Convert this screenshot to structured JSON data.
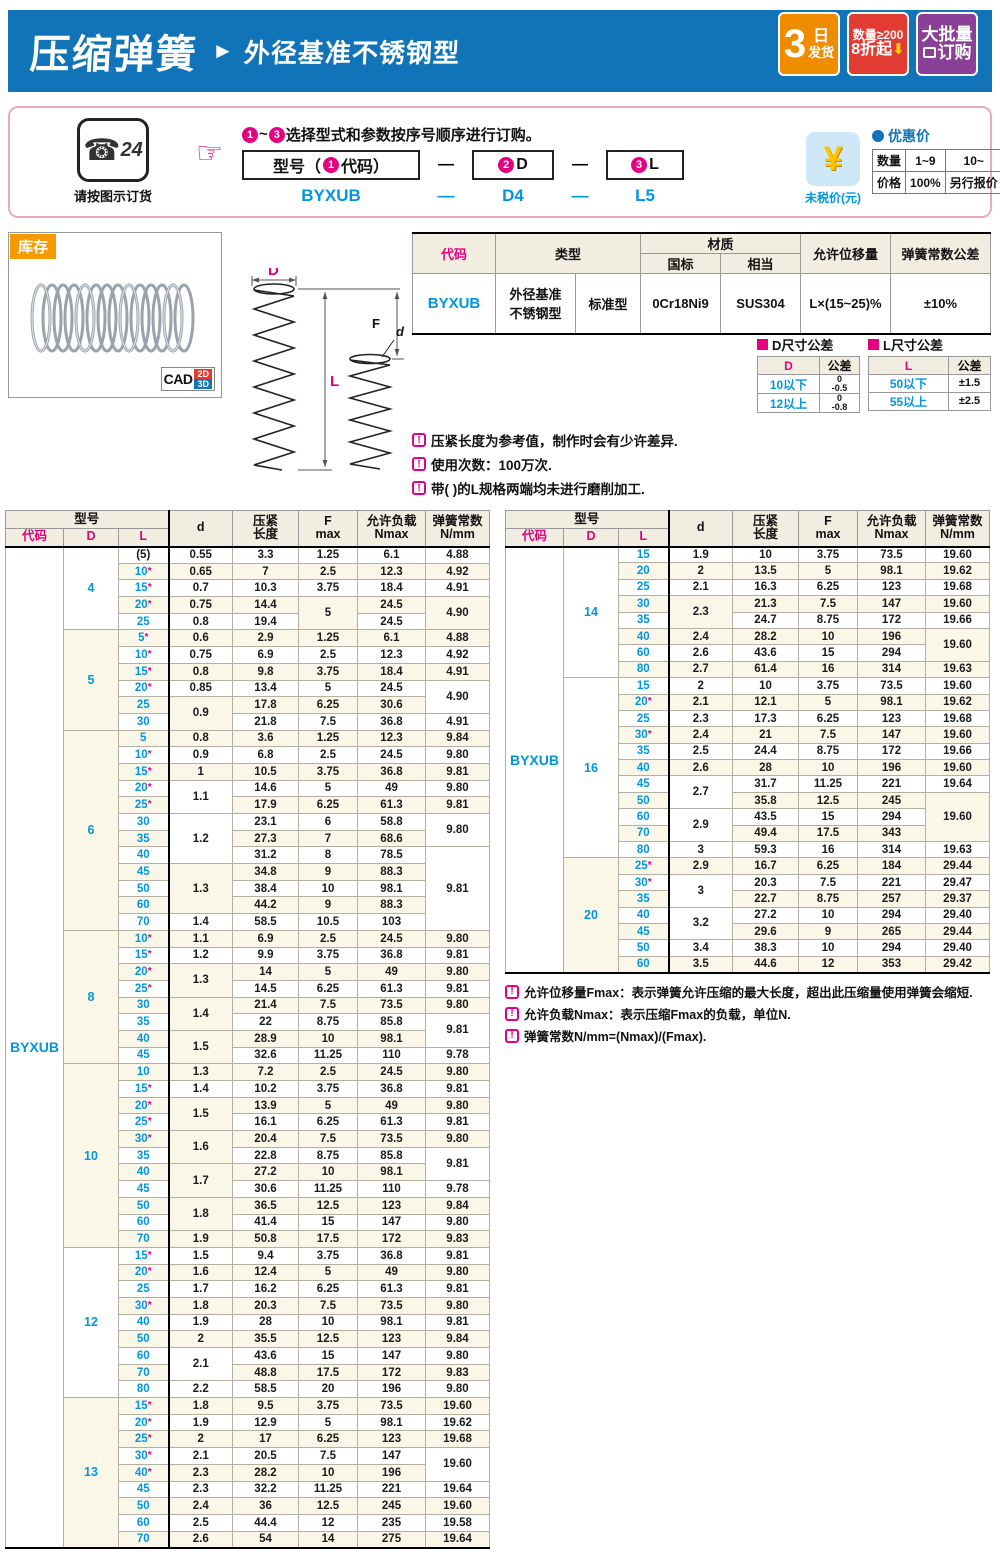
{
  "banner": {
    "title": "压缩弹簧",
    "arrow": "►",
    "subtitle": "外径基准不锈钢型"
  },
  "badges": {
    "b1_num": "3",
    "b1_unit": "日",
    "b1_text": "发货",
    "b2_line1": "数量≥200",
    "b2_line2": "8折起",
    "b2_arrow": "⬇",
    "b3_line1": "大批量",
    "b3_line2": "订购"
  },
  "ordering": {
    "phone_glyph": "☎",
    "phone_24": "24",
    "phone_caption": "请按图示订货",
    "hand": "☞",
    "instr_n1": "1",
    "instr_tilde": "~",
    "instr_n3": "3",
    "instr_text": "选择型式和参数按序号顺序进行订购。",
    "box1_pre": "型号（",
    "box1_n": "1",
    "box1_post": "代码）",
    "box2_n": "2",
    "box2_letter": "D",
    "box3_n": "3",
    "box3_letter": "L",
    "dash": "—",
    "example": {
      "code": "BYXUB",
      "dash1": "—",
      "d": "D4",
      "dash2": "—",
      "l": "L5"
    }
  },
  "pricing": {
    "yen": "¥",
    "caption": "未税价(元)",
    "title": "优惠价",
    "row1": [
      "数量",
      "1~9",
      "10~"
    ],
    "row2": [
      "价格",
      "100%",
      "另行报价"
    ]
  },
  "stock": {
    "tag": "库存",
    "cad": "CAD",
    "cad2d": "2D",
    "cad3d": "3D"
  },
  "diagram_labels": {
    "D": "D",
    "F": "F",
    "d": "d",
    "L": "L"
  },
  "spec_table": {
    "h_code": "代码",
    "h_type": "类型",
    "h_material": "材质",
    "h_gb": "国标",
    "h_equiv": "相当",
    "h_disp": "允许位移量",
    "h_ktol": "弹簧常数公差",
    "code": "BYXUB",
    "type1": "外径基准\n不锈钢型",
    "type2": "标准型",
    "gb": "0Cr18Ni9",
    "equiv": "SUS304",
    "disp": "L×(15~25)%",
    "ktol": "±10%"
  },
  "tolerances": {
    "d_title": "D尺寸公差",
    "d_h1": "D",
    "d_h2": "公差",
    "d_rows": [
      {
        "label": "10以下",
        "upper": "0",
        "lower": "-0.5"
      },
      {
        "label": "12以上",
        "upper": "0",
        "lower": "-0.8"
      }
    ],
    "l_title": "L尺寸公差",
    "l_h1": "L",
    "l_h2": "公差",
    "l_rows": [
      {
        "label": "50以下",
        "tol": "±1.5"
      },
      {
        "label": "55以上",
        "tol": "±2.5"
      }
    ]
  },
  "notes": [
    "压紧长度为参考值，制作时会有少许差异.",
    "使用次数：100万次.",
    "带( )的L规格两端均未进行磨削加工."
  ],
  "footnotes": [
    "允许位移量Fmax：表示弹簧允许压缩的最大长度，超出此压缩量使用弹簧会缩短.",
    "允许负载Nmax：表示压缩Fmax的负载，单位N.",
    "弹簧常数N/mm=(Nmax)/(Fmax)."
  ],
  "spring_tables": {
    "headers": {
      "model": "型号",
      "code": "代码",
      "D": "D",
      "L": "L",
      "d": "d",
      "len": "压紧\n长度",
      "f": "F\nmax",
      "n": "允许负载\nNmax",
      "k": "弹簧常数\nN/mm"
    },
    "left": {
      "code": "BYXUB",
      "groups": [
        {
          "D": "4",
          "rows": [
            {
              "L": "(5)",
              "d": "0.55",
              "len": "3.3",
              "f": "1.25",
              "n": "6.1",
              "k": "4.88"
            },
            {
              "L": "10*",
              "d": "0.65",
              "len": "7",
              "f": "2.5",
              "n": "12.3",
              "k": "4.92"
            },
            {
              "L": "15*",
              "d": "0.7",
              "len": "10.3",
              "f": "3.75",
              "n": "18.4",
              "k": "4.91"
            },
            {
              "L": "20*",
              "d": "0.75",
              "len": "14.4",
              "f": "5",
              "n": "24.5",
              "k": "4.90"
            },
            {
              "L": "25",
              "d": "0.8",
              "len": "19.4",
              "f": null,
              "n": "24.5",
              "k": null
            }
          ]
        },
        {
          "D": "5",
          "rows": [
            {
              "L": "5*",
              "d": "0.6",
              "len": "2.9",
              "f": "1.25",
              "n": "6.1",
              "k": "4.88"
            },
            {
              "L": "10*",
              "d": "0.75",
              "len": "6.9",
              "f": "2.5",
              "n": "12.3",
              "k": "4.92"
            },
            {
              "L": "15*",
              "d": "0.8",
              "len": "9.8",
              "f": "3.75",
              "n": "18.4",
              "k": "4.91"
            },
            {
              "L": "20*",
              "d": "0.85",
              "len": "13.4",
              "f": "5",
              "n": "24.5",
              "k": "4.90"
            },
            {
              "L": "25",
              "d": "0.9",
              "len": "17.8",
              "f": "6.25",
              "n": "30.6",
              "k": null
            },
            {
              "L": "30",
              "d": null,
              "len": "21.8",
              "f": "7.5",
              "n": "36.8",
              "k": "4.91"
            }
          ]
        },
        {
          "D": "6",
          "rows": [
            {
              "L": "5",
              "d": "0.8",
              "len": "3.6",
              "f": "1.25",
              "n": "12.3",
              "k": "9.84"
            },
            {
              "L": "10*",
              "d": "0.9",
              "len": "6.8",
              "f": "2.5",
              "n": "24.5",
              "k": "9.80"
            },
            {
              "L": "15*",
              "d": "1",
              "len": "10.5",
              "f": "3.75",
              "n": "36.8",
              "k": "9.81"
            },
            {
              "L": "20*",
              "d": "1.1",
              "len": "14.6",
              "f": "5",
              "n": "49",
              "k": "9.80"
            },
            {
              "L": "25*",
              "d": null,
              "len": "17.9",
              "f": "6.25",
              "n": "61.3",
              "k": "9.81"
            },
            {
              "L": "30",
              "d": "1.2",
              "len": "23.1",
              "f": "6",
              "n": "58.8",
              "k": "9.80"
            },
            {
              "L": "35",
              "d": null,
              "len": "27.3",
              "f": "7",
              "n": "68.6",
              "k": null
            },
            {
              "L": "40",
              "d": null,
              "len": "31.2",
              "f": "8",
              "n": "78.5",
              "k": "9.81"
            },
            {
              "L": "45",
              "d": "1.3",
              "len": "34.8",
              "f": "9",
              "n": "88.3",
              "k": null
            },
            {
              "L": "50",
              "d": null,
              "len": "38.4",
              "f": "10",
              "n": "98.1",
              "k": null
            },
            {
              "L": "60",
              "d": null,
              "len": "44.2",
              "f": "9",
              "n": "88.3",
              "k": null
            },
            {
              "L": "70",
              "d": "1.4",
              "len": "58.5",
              "f": "10.5",
              "n": "103",
              "k": null
            }
          ]
        },
        {
          "D": "8",
          "rows": [
            {
              "L": "10*",
              "d": "1.1",
              "len": "6.9",
              "f": "2.5",
              "n": "24.5",
              "k": "9.80"
            },
            {
              "L": "15*",
              "d": "1.2",
              "len": "9.9",
              "f": "3.75",
              "n": "36.8",
              "k": "9.81"
            },
            {
              "L": "20*",
              "d": "1.3",
              "len": "14",
              "f": "5",
              "n": "49",
              "k": "9.80"
            },
            {
              "L": "25*",
              "d": null,
              "len": "14.5",
              "f": "6.25",
              "n": "61.3",
              "k": "9.81"
            },
            {
              "L": "30",
              "d": "1.4",
              "len": "21.4",
              "f": "7.5",
              "n": "73.5",
              "k": "9.80"
            },
            {
              "L": "35",
              "d": null,
              "len": "22",
              "f": "8.75",
              "n": "85.8",
              "k": "9.81"
            },
            {
              "L": "40",
              "d": "1.5",
              "len": "28.9",
              "f": "10",
              "n": "98.1",
              "k": null
            },
            {
              "L": "45",
              "d": null,
              "len": "32.6",
              "f": "11.25",
              "n": "110",
              "k": "9.78"
            }
          ]
        },
        {
          "D": "10",
          "rows": [
            {
              "L": "10",
              "d": "1.3",
              "len": "7.2",
              "f": "2.5",
              "n": "24.5",
              "k": "9.80"
            },
            {
              "L": "15*",
              "d": "1.4",
              "len": "10.2",
              "f": "3.75",
              "n": "36.8",
              "k": "9.81"
            },
            {
              "L": "20*",
              "d": "1.5",
              "len": "13.9",
              "f": "5",
              "n": "49",
              "k": "9.80"
            },
            {
              "L": "25*",
              "d": null,
              "len": "16.1",
              "f": "6.25",
              "n": "61.3",
              "k": "9.81"
            },
            {
              "L": "30*",
              "d": "1.6",
              "len": "20.4",
              "f": "7.5",
              "n": "73.5",
              "k": "9.80"
            },
            {
              "L": "35",
              "d": null,
              "len": "22.8",
              "f": "8.75",
              "n": "85.8",
              "k": "9.81"
            },
            {
              "L": "40",
              "d": "1.7",
              "len": "27.2",
              "f": "10",
              "n": "98.1",
              "k": null
            },
            {
              "L": "45",
              "d": null,
              "len": "30.6",
              "f": "11.25",
              "n": "110",
              "k": "9.78"
            },
            {
              "L": "50",
              "d": "1.8",
              "len": "36.5",
              "f": "12.5",
              "n": "123",
              "k": "9.84"
            },
            {
              "L": "60",
              "d": null,
              "len": "41.4",
              "f": "15",
              "n": "147",
              "k": "9.80"
            },
            {
              "L": "70",
              "d": "1.9",
              "len": "50.8",
              "f": "17.5",
              "n": "172",
              "k": "9.83"
            }
          ]
        },
        {
          "D": "12",
          "rows": [
            {
              "L": "15*",
              "d": "1.5",
              "len": "9.4",
              "f": "3.75",
              "n": "36.8",
              "k": "9.81"
            },
            {
              "L": "20*",
              "d": "1.6",
              "len": "12.4",
              "f": "5",
              "n": "49",
              "k": "9.80"
            },
            {
              "L": "25",
              "d": "1.7",
              "len": "16.2",
              "f": "6.25",
              "n": "61.3",
              "k": "9.81"
            },
            {
              "L": "30*",
              "d": "1.8",
              "len": "20.3",
              "f": "7.5",
              "n": "73.5",
              "k": "9.80"
            },
            {
              "L": "40",
              "d": "1.9",
              "len": "28",
              "f": "10",
              "n": "98.1",
              "k": "9.81"
            },
            {
              "L": "50",
              "d": "2",
              "len": "35.5",
              "f": "12.5",
              "n": "123",
              "k": "9.84"
            },
            {
              "L": "60",
              "d": "2.1",
              "len": "43.6",
              "f": "15",
              "n": "147",
              "k": "9.80"
            },
            {
              "L": "70",
              "d": null,
              "len": "48.8",
              "f": "17.5",
              "n": "172",
              "k": "9.83"
            },
            {
              "L": "80",
              "d": "2.2",
              "len": "58.5",
              "f": "20",
              "n": "196",
              "k": "9.80"
            }
          ]
        },
        {
          "D": "13",
          "rows": [
            {
              "L": "15*",
              "d": "1.8",
              "len": "9.5",
              "f": "3.75",
              "n": "73.5",
              "k": "19.60"
            },
            {
              "L": "20*",
              "d": "1.9",
              "len": "12.9",
              "f": "5",
              "n": "98.1",
              "k": "19.62"
            },
            {
              "L": "25*",
              "d": "2",
              "len": "17",
              "f": "6.25",
              "n": "123",
              "k": "19.68"
            },
            {
              "L": "30*",
              "d": "2.1",
              "len": "20.5",
              "f": "7.5",
              "n": "147",
              "k": "19.60"
            },
            {
              "L": "40*",
              "d": "2.3",
              "len": "28.2",
              "f": "10",
              "n": "196",
              "k": null
            },
            {
              "L": "45",
              "d": "2.3",
              "len": "32.2",
              "f": "11.25",
              "n": "221",
              "k": "19.64"
            },
            {
              "L": "50",
              "d": "2.4",
              "len": "36",
              "f": "12.5",
              "n": "245",
              "k": "19.60"
            },
            {
              "L": "60",
              "d": "2.5",
              "len": "44.4",
              "f": "12",
              "n": "235",
              "k": "19.58"
            },
            {
              "L": "70",
              "d": "2.6",
              "len": "54",
              "f": "14",
              "n": "275",
              "k": "19.64"
            }
          ]
        }
      ]
    },
    "right": {
      "code": "BYXUB",
      "groups": [
        {
          "D": "14",
          "rows": [
            {
              "L": "15",
              "d": "1.9",
              "len": "10",
              "f": "3.75",
              "n": "73.5",
              "k": "19.60"
            },
            {
              "L": "20",
              "d": "2",
              "len": "13.5",
              "f": "5",
              "n": "98.1",
              "k": "19.62"
            },
            {
              "L": "25",
              "d": "2.1",
              "len": "16.3",
              "f": "6.25",
              "n": "123",
              "k": "19.68"
            },
            {
              "L": "30",
              "d": "2.3",
              "len": "21.3",
              "f": "7.5",
              "n": "147",
              "k": "19.60"
            },
            {
              "L": "35",
              "d": null,
              "len": "24.7",
              "f": "8.75",
              "n": "172",
              "k": "19.66"
            },
            {
              "L": "40",
              "d": "2.4",
              "len": "28.2",
              "f": "10",
              "n": "196",
              "k": "19.60"
            },
            {
              "L": "60",
              "d": "2.6",
              "len": "43.6",
              "f": "15",
              "n": "294",
              "k": null
            },
            {
              "L": "80",
              "d": "2.7",
              "len": "61.4",
              "f": "16",
              "n": "314",
              "k": "19.63"
            }
          ]
        },
        {
          "D": "16",
          "rows": [
            {
              "L": "15",
              "d": "2",
              "len": "10",
              "f": "3.75",
              "n": "73.5",
              "k": "19.60"
            },
            {
              "L": "20*",
              "d": "2.1",
              "len": "12.1",
              "f": "5",
              "n": "98.1",
              "k": "19.62"
            },
            {
              "L": "25",
              "d": "2.3",
              "len": "17.3",
              "f": "6.25",
              "n": "123",
              "k": "19.68"
            },
            {
              "L": "30*",
              "d": "2.4",
              "len": "21",
              "f": "7.5",
              "n": "147",
              "k": "19.60"
            },
            {
              "L": "35",
              "d": "2.5",
              "len": "24.4",
              "f": "8.75",
              "n": "172",
              "k": "19.66"
            },
            {
              "L": "40",
              "d": "2.6",
              "len": "28",
              "f": "10",
              "n": "196",
              "k": "19.60"
            },
            {
              "L": "45",
              "d": "2.7",
              "len": "31.7",
              "f": "11.25",
              "n": "221",
              "k": "19.64"
            },
            {
              "L": "50",
              "d": null,
              "len": "35.8",
              "f": "12.5",
              "n": "245",
              "k": "19.60"
            },
            {
              "L": "60",
              "d": "2.9",
              "len": "43.5",
              "f": "15",
              "n": "294",
              "k": null
            },
            {
              "L": "70",
              "d": null,
              "len": "49.4",
              "f": "17.5",
              "n": "343",
              "k": null
            },
            {
              "L": "80",
              "d": "3",
              "len": "59.3",
              "f": "16",
              "n": "314",
              "k": "19.63"
            }
          ]
        },
        {
          "D": "20",
          "rows": [
            {
              "L": "25*",
              "d": "2.9",
              "len": "16.7",
              "f": "6.25",
              "n": "184",
              "k": "29.44"
            },
            {
              "L": "30*",
              "d": "3",
              "len": "20.3",
              "f": "7.5",
              "n": "221",
              "k": "29.47"
            },
            {
              "L": "35",
              "d": null,
              "len": "22.7",
              "f": "8.75",
              "n": "257",
              "k": "29.37"
            },
            {
              "L": "40",
              "d": "3.2",
              "len": "27.2",
              "f": "10",
              "n": "294",
              "k": "29.40"
            },
            {
              "L": "45",
              "d": null,
              "len": "29.6",
              "f": "9",
              "n": "265",
              "k": "29.44"
            },
            {
              "L": "50",
              "d": "3.4",
              "len": "38.3",
              "f": "10",
              "n": "294",
              "k": "29.40"
            },
            {
              "L": "60",
              "d": "3.5",
              "len": "44.6",
              "f": "12",
              "n": "353",
              "k": "29.42"
            }
          ]
        }
      ]
    }
  }
}
